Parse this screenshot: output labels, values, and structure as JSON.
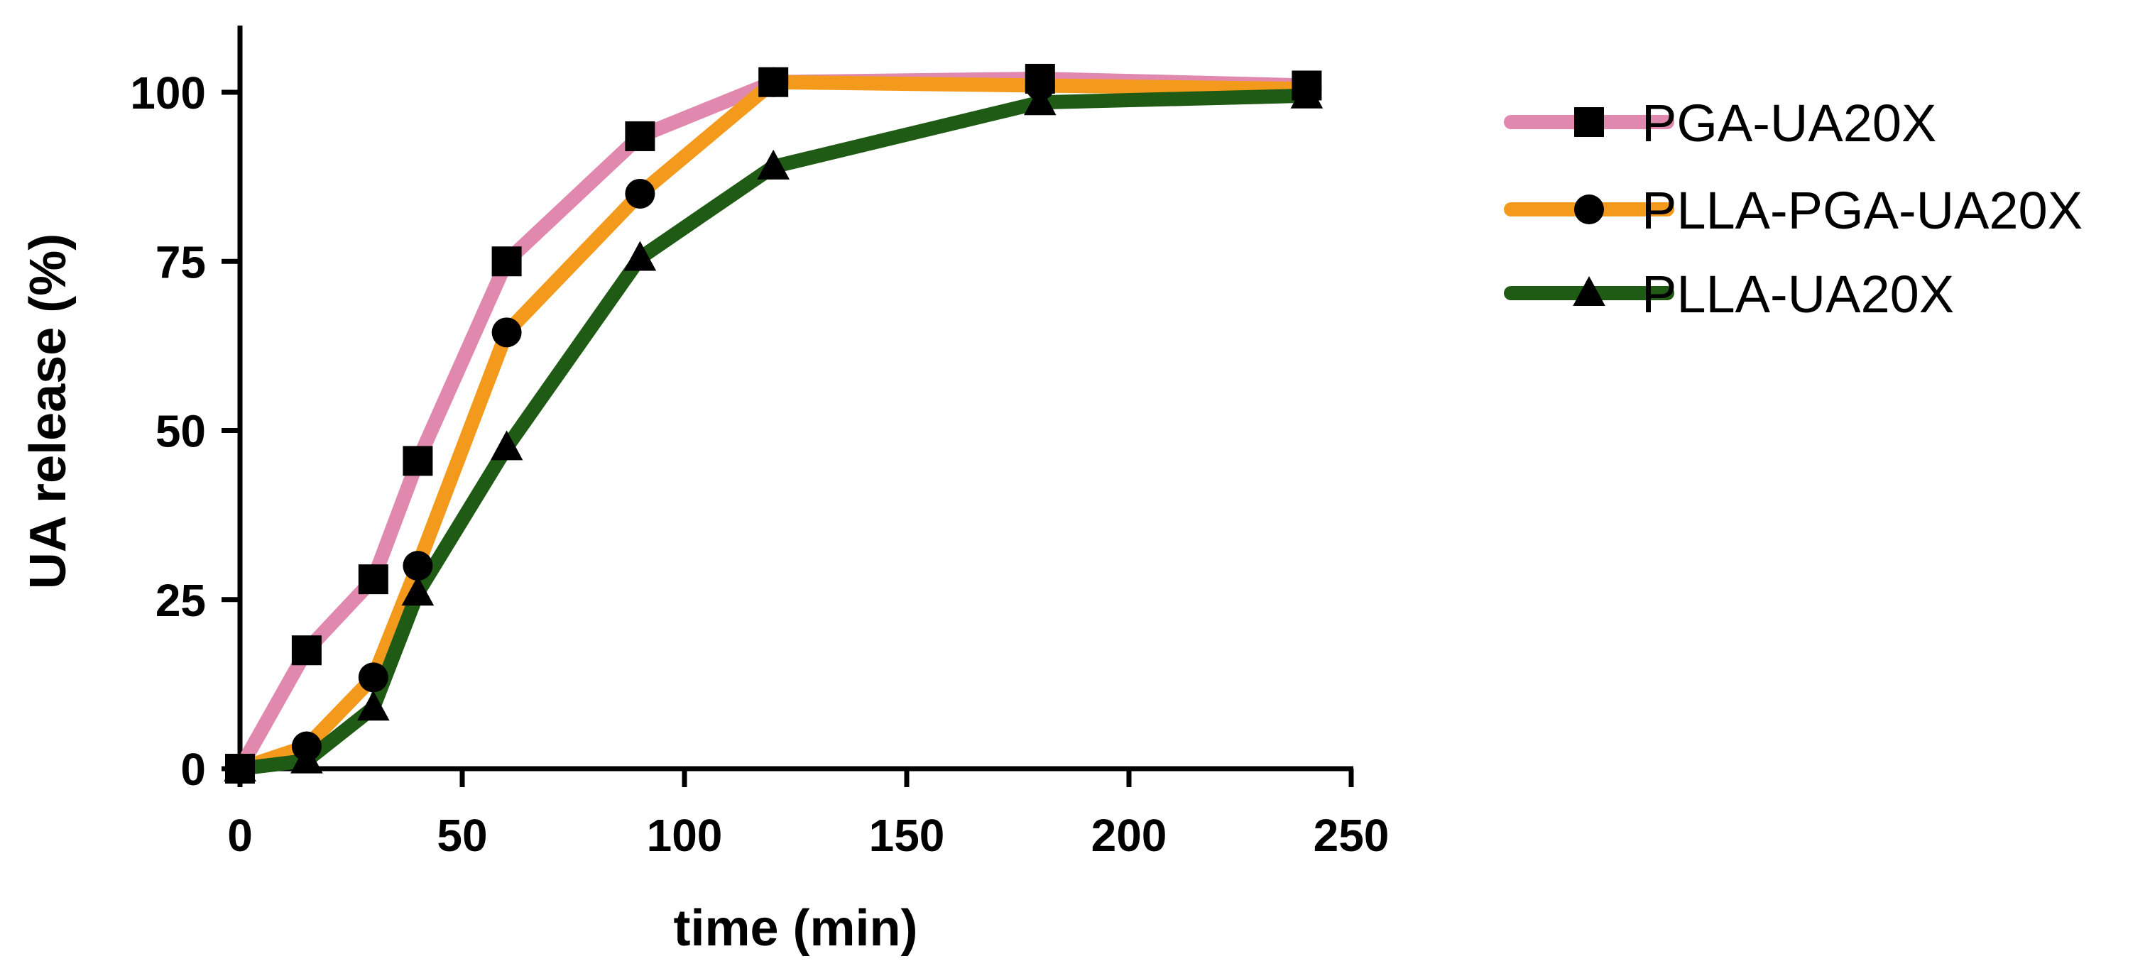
{
  "chart_data": {
    "type": "line",
    "title": "",
    "xlabel": "time (min)",
    "ylabel": "UA release (%)",
    "xlim": [
      0,
      250
    ],
    "ylim": [
      0,
      110
    ],
    "xticks": [
      0,
      50,
      100,
      150,
      200,
      250
    ],
    "yticks": [
      0,
      25,
      50,
      75,
      100
    ],
    "grid": false,
    "legend_position": "top-right outside",
    "x": [
      0,
      15,
      30,
      40,
      60,
      90,
      120,
      180,
      240
    ],
    "series": [
      {
        "name": "PGA-UA20X",
        "color": "#e088ad",
        "marker": "square",
        "values": [
          0,
          17.5,
          28,
          45.5,
          75,
          93.5,
          101.5,
          102,
          101
        ]
      },
      {
        "name": "PLLA-PGA-UA20X",
        "color": "#f39a1c",
        "marker": "circle",
        "values": [
          0,
          3.3,
          13.5,
          30,
          64.5,
          85,
          101.5,
          101,
          100.5
        ]
      },
      {
        "name": "PLLA-UA20X",
        "color": "#1f5b14",
        "marker": "triangle",
        "values": [
          0,
          1.2,
          9,
          26,
          47.5,
          75.5,
          89,
          98.5,
          99.5
        ]
      }
    ]
  }
}
